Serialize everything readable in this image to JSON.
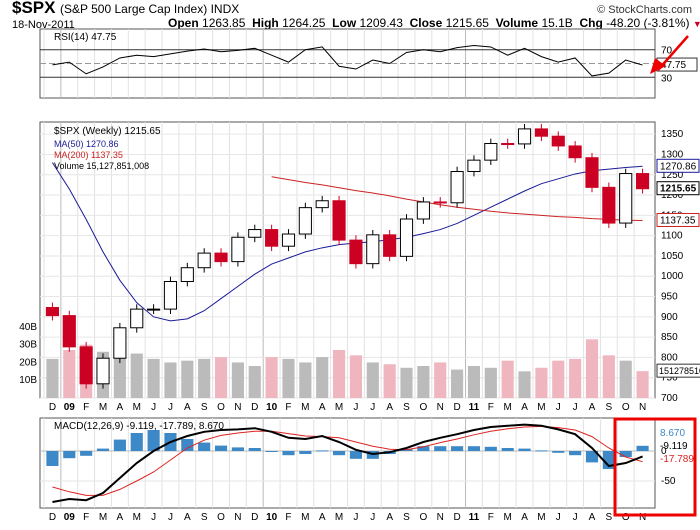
{
  "header": {
    "symbol": "$SPX",
    "description": "(S&P 500 Large Cap Index)",
    "exchange": "INDX",
    "date": "18-Nov-2011",
    "open_label": "Open",
    "open": "1263.85",
    "high_label": "High",
    "high": "1264.25",
    "low_label": "Low",
    "low": "1209.43",
    "close_label": "Close",
    "close": "1215.65",
    "volume_label": "Volume",
    "volume": "15.1B",
    "chg_label": "Chg",
    "chg": "-48.20 (-3.81%)",
    "source": "© StockCharts.com"
  },
  "colors": {
    "up": "#000000",
    "down": "#cc0022",
    "ma50": "#1a1a99",
    "ma200": "#cc2222",
    "vol_up": "#bbbbbb",
    "vol_down": "#f0b6bf",
    "macd_hist": "#3d88c6",
    "annotation": "#ee0000"
  },
  "chart_data": [
    {
      "type": "line",
      "panel": "rsi",
      "legend": "RSI(14) 47.75",
      "ylim": [
        0,
        100
      ],
      "levels": [
        70,
        30
      ],
      "tick_labels": [
        "70",
        "30"
      ],
      "last_value_label": "47.75",
      "x": [
        "2008-12",
        "2009-01",
        "2009-02",
        "2009-03",
        "2009-04",
        "2009-05",
        "2009-06",
        "2009-07",
        "2009-08",
        "2009-09",
        "2009-10",
        "2009-11",
        "2009-12",
        "2010-01",
        "2010-02",
        "2010-03",
        "2010-04",
        "2010-05",
        "2010-06",
        "2010-07",
        "2010-08",
        "2010-09",
        "2010-10",
        "2010-11",
        "2010-12",
        "2011-01",
        "2011-02",
        "2011-03",
        "2011-04",
        "2011-05",
        "2011-06",
        "2011-07",
        "2011-08",
        "2011-09",
        "2011-10",
        "2011-11"
      ],
      "values": [
        48,
        52,
        35,
        45,
        58,
        62,
        60,
        64,
        68,
        71,
        67,
        69,
        72,
        62,
        52,
        70,
        74,
        46,
        42,
        55,
        50,
        66,
        70,
        67,
        73,
        76,
        74,
        62,
        72,
        60,
        52,
        58,
        32,
        36,
        55,
        47.75
      ]
    },
    {
      "type": "bar",
      "panel": "price",
      "legend": "$SPX (Weekly) 1215.65",
      "series_labels": [
        "MA(50) 1270.86",
        "MA(200) 1137.35",
        "Volume 15,127,851,008"
      ],
      "ylim": [
        700,
        1380
      ],
      "y_ticks": [
        1350,
        1300,
        1250,
        1200,
        1150,
        1100,
        1050,
        1000,
        950,
        900,
        850,
        800,
        750,
        700
      ],
      "last_labels": {
        "ma50": "1270.86",
        "close": "1215.65",
        "ma200": "1137.35"
      },
      "x": [
        "2008-12",
        "2009-01",
        "2009-02",
        "2009-03",
        "2009-04",
        "2009-05",
        "2009-06",
        "2009-07",
        "2009-08",
        "2009-09",
        "2009-10",
        "2009-11",
        "2009-12",
        "2010-01",
        "2010-02",
        "2010-03",
        "2010-04",
        "2010-05",
        "2010-06",
        "2010-07",
        "2010-08",
        "2010-09",
        "2010-10",
        "2010-11",
        "2010-12",
        "2011-01",
        "2011-02",
        "2011-03",
        "2011-04",
        "2011-05",
        "2011-06",
        "2011-07",
        "2011-08",
        "2011-09",
        "2011-10",
        "2011-11"
      ],
      "close": [
        903,
        826,
        735,
        798,
        873,
        919,
        919,
        987,
        1021,
        1057,
        1036,
        1096,
        1115,
        1074,
        1104,
        1169,
        1186,
        1089,
        1031,
        1102,
        1049,
        1141,
        1183,
        1181,
        1258,
        1286,
        1327,
        1326,
        1363,
        1345,
        1321,
        1292,
        1219,
        1131,
        1253,
        1215.65
      ],
      "ma50": [
        1280,
        1215,
        1140,
        1060,
        990,
        935,
        900,
        890,
        895,
        915,
        945,
        975,
        1005,
        1030,
        1045,
        1060,
        1070,
        1078,
        1082,
        1085,
        1090,
        1096,
        1105,
        1115,
        1130,
        1150,
        1170,
        1190,
        1210,
        1228,
        1240,
        1252,
        1260,
        1264,
        1268,
        1270.86
      ],
      "ma200": [
        null,
        null,
        null,
        null,
        null,
        null,
        null,
        null,
        null,
        null,
        null,
        null,
        null,
        1245,
        1238,
        1231,
        1225,
        1218,
        1211,
        1205,
        1198,
        1190,
        1183,
        1176,
        1170,
        1165,
        1160,
        1156,
        1153,
        1150,
        1147,
        1145,
        1142,
        1140,
        1138,
        1137.35
      ],
      "volume_panel": {
        "tick_labels": [
          "40B",
          "30B",
          "20B",
          "10B"
        ],
        "ylim": [
          0,
          45
        ],
        "last_value_label": "15127851008",
        "values": [
          22,
          27,
          30,
          26,
          28,
          25,
          22,
          20,
          21,
          22,
          23,
          20,
          18,
          23,
          22,
          20,
          23,
          27,
          24,
          20,
          19,
          17,
          18,
          20,
          16,
          18,
          17,
          21,
          15,
          17,
          21,
          22,
          33,
          24,
          21,
          15.1
        ]
      }
    },
    {
      "type": "line",
      "panel": "macd",
      "legend": "MACD(12,26,9) -9.119, -17.789, 8.670",
      "ylim": [
        -95,
        55
      ],
      "tick_labels": [
        "0",
        "-50"
      ],
      "last_labels": {
        "hist": "8.670",
        "macd": "-9.119",
        "signal": "-17.789"
      },
      "x": [
        "2008-12",
        "2009-01",
        "2009-02",
        "2009-03",
        "2009-04",
        "2009-05",
        "2009-06",
        "2009-07",
        "2009-08",
        "2009-09",
        "2009-10",
        "2009-11",
        "2009-12",
        "2010-01",
        "2010-02",
        "2010-03",
        "2010-04",
        "2010-05",
        "2010-06",
        "2010-07",
        "2010-08",
        "2010-09",
        "2010-10",
        "2010-11",
        "2010-12",
        "2011-01",
        "2011-02",
        "2011-03",
        "2011-04",
        "2011-05",
        "2011-06",
        "2011-07",
        "2011-08",
        "2011-09",
        "2011-10",
        "2011-11"
      ],
      "series": [
        {
          "name": "MACD",
          "values": [
            -85,
            -80,
            -82,
            -70,
            -45,
            -20,
            0,
            15,
            25,
            32,
            35,
            36,
            38,
            32,
            22,
            20,
            25,
            15,
            2,
            -5,
            -2,
            5,
            15,
            22,
            28,
            35,
            40,
            42,
            44,
            42,
            36,
            28,
            5,
            -25,
            -20,
            -9.119
          ]
        },
        {
          "name": "Signal",
          "values": [
            -60,
            -68,
            -74,
            -74,
            -64,
            -50,
            -35,
            -15,
            5,
            18,
            26,
            30,
            33,
            33,
            29,
            25,
            24,
            22,
            15,
            8,
            3,
            2,
            7,
            14,
            20,
            27,
            33,
            37,
            40,
            41,
            39,
            35,
            24,
            5,
            -10,
            -17.789
          ]
        },
        {
          "name": "Histogram",
          "values": [
            -25,
            -12,
            -8,
            4,
            19,
            30,
            35,
            30,
            20,
            14,
            9,
            6,
            5,
            -1,
            -7,
            -5,
            1,
            -7,
            -13,
            -13,
            -5,
            3,
            8,
            8,
            8,
            8,
            7,
            5,
            4,
            1,
            -3,
            -7,
            -19,
            -30,
            -10,
            8.67
          ]
        }
      ]
    }
  ],
  "x_axis": {
    "ticks": [
      {
        "t": 0,
        "label": "D",
        "bold": false
      },
      {
        "t": 1,
        "label": "09",
        "bold": true
      },
      {
        "t": 2,
        "label": "F",
        "bold": false
      },
      {
        "t": 3,
        "label": "M",
        "bold": false
      },
      {
        "t": 4,
        "label": "A",
        "bold": false
      },
      {
        "t": 5,
        "label": "M",
        "bold": false
      },
      {
        "t": 6,
        "label": "J",
        "bold": false
      },
      {
        "t": 7,
        "label": "J",
        "bold": false
      },
      {
        "t": 8,
        "label": "A",
        "bold": false
      },
      {
        "t": 9,
        "label": "S",
        "bold": false
      },
      {
        "t": 10,
        "label": "O",
        "bold": false
      },
      {
        "t": 11,
        "label": "N",
        "bold": false
      },
      {
        "t": 12,
        "label": "D",
        "bold": false
      },
      {
        "t": 13,
        "label": "10",
        "bold": true
      },
      {
        "t": 14,
        "label": "F",
        "bold": false
      },
      {
        "t": 15,
        "label": "M",
        "bold": false
      },
      {
        "t": 16,
        "label": "A",
        "bold": false
      },
      {
        "t": 17,
        "label": "M",
        "bold": false
      },
      {
        "t": 18,
        "label": "J",
        "bold": false
      },
      {
        "t": 19,
        "label": "J",
        "bold": false
      },
      {
        "t": 20,
        "label": "A",
        "bold": false
      },
      {
        "t": 21,
        "label": "S",
        "bold": false
      },
      {
        "t": 22,
        "label": "O",
        "bold": false
      },
      {
        "t": 23,
        "label": "N",
        "bold": false
      },
      {
        "t": 24,
        "label": "D",
        "bold": false
      },
      {
        "t": 25,
        "label": "11",
        "bold": true
      },
      {
        "t": 26,
        "label": "F",
        "bold": false
      },
      {
        "t": 27,
        "label": "M",
        "bold": false
      },
      {
        "t": 28,
        "label": "A",
        "bold": false
      },
      {
        "t": 29,
        "label": "M",
        "bold": false
      },
      {
        "t": 30,
        "label": "J",
        "bold": false
      },
      {
        "t": 31,
        "label": "J",
        "bold": false
      },
      {
        "t": 32,
        "label": "A",
        "bold": false
      },
      {
        "t": 33,
        "label": "S",
        "bold": false
      },
      {
        "t": 34,
        "label": "O",
        "bold": false
      },
      {
        "t": 35,
        "label": "N",
        "bold": false
      }
    ]
  }
}
